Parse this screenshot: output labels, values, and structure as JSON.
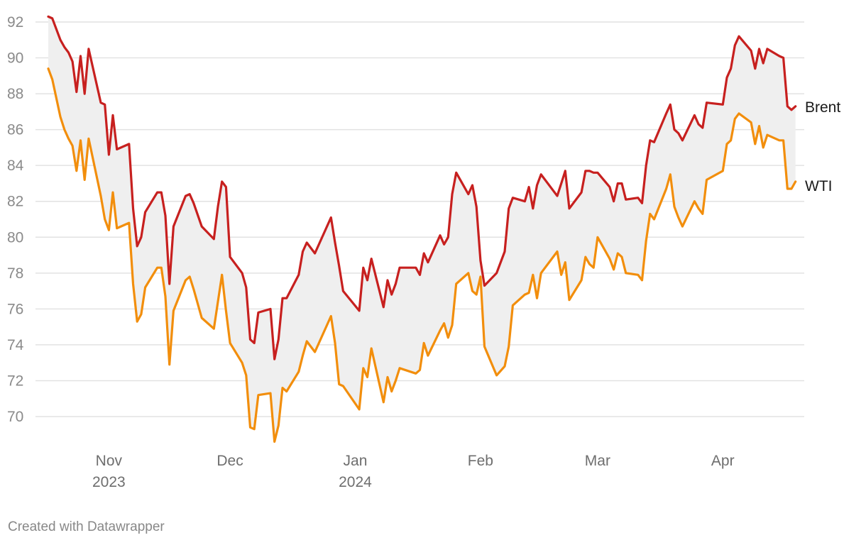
{
  "chart_data": {
    "type": "line",
    "title": "",
    "xlabel": "",
    "ylabel": "",
    "ylim": [
      68.2,
      92.8
    ],
    "xlim": [
      "2023-10-17",
      "2024-04-18"
    ],
    "y_ticks": [
      70,
      72,
      74,
      76,
      78,
      80,
      82,
      84,
      86,
      88,
      90,
      92
    ],
    "x_ticks": [
      {
        "date": "2023-11-01",
        "label": "Nov",
        "sublabel": "2023"
      },
      {
        "date": "2023-12-01",
        "label": "Dec",
        "sublabel": ""
      },
      {
        "date": "2024-01-01",
        "label": "Jan",
        "sublabel": "2024"
      },
      {
        "date": "2024-02-01",
        "label": "Feb",
        "sublabel": ""
      },
      {
        "date": "2024-03-01",
        "label": "Mar",
        "sublabel": ""
      },
      {
        "date": "2024-04-01",
        "label": "Apr",
        "sublabel": ""
      }
    ],
    "grid": true,
    "fill_between_series": true,
    "fill_color": "#efefef",
    "series": [
      {
        "name": "Brent",
        "color": "#c7201f",
        "points": [
          [
            "2023-10-17",
            92.3
          ],
          [
            "2023-10-18",
            92.2
          ],
          [
            "2023-10-20",
            91.0
          ],
          [
            "2023-10-21",
            90.6
          ],
          [
            "2023-10-22",
            90.3
          ],
          [
            "2023-10-23",
            89.8
          ],
          [
            "2023-10-24",
            88.1
          ],
          [
            "2023-10-25",
            90.1
          ],
          [
            "2023-10-26",
            88.0
          ],
          [
            "2023-10-27",
            90.5
          ],
          [
            "2023-10-30",
            87.5
          ],
          [
            "2023-10-31",
            87.4
          ],
          [
            "2023-11-01",
            84.6
          ],
          [
            "2023-11-02",
            86.8
          ],
          [
            "2023-11-03",
            84.9
          ],
          [
            "2023-11-06",
            85.2
          ],
          [
            "2023-11-07",
            81.6
          ],
          [
            "2023-11-08",
            79.5
          ],
          [
            "2023-11-09",
            80.0
          ],
          [
            "2023-11-10",
            81.4
          ],
          [
            "2023-11-13",
            82.5
          ],
          [
            "2023-11-14",
            82.5
          ],
          [
            "2023-11-15",
            81.2
          ],
          [
            "2023-11-16",
            77.4
          ],
          [
            "2023-11-17",
            80.6
          ],
          [
            "2023-11-20",
            82.3
          ],
          [
            "2023-11-21",
            82.4
          ],
          [
            "2023-11-22",
            81.9
          ],
          [
            "2023-11-24",
            80.6
          ],
          [
            "2023-11-27",
            79.9
          ],
          [
            "2023-11-28",
            81.7
          ],
          [
            "2023-11-29",
            83.1
          ],
          [
            "2023-11-30",
            82.8
          ],
          [
            "2023-12-01",
            78.9
          ],
          [
            "2023-12-04",
            78.0
          ],
          [
            "2023-12-05",
            77.2
          ],
          [
            "2023-12-06",
            74.3
          ],
          [
            "2023-12-07",
            74.1
          ],
          [
            "2023-12-08",
            75.8
          ],
          [
            "2023-12-11",
            76.0
          ],
          [
            "2023-12-12",
            73.2
          ],
          [
            "2023-12-13",
            74.3
          ],
          [
            "2023-12-14",
            76.6
          ],
          [
            "2023-12-15",
            76.6
          ],
          [
            "2023-12-18",
            77.9
          ],
          [
            "2023-12-19",
            79.2
          ],
          [
            "2023-12-20",
            79.7
          ],
          [
            "2023-12-22",
            79.1
          ],
          [
            "2023-12-26",
            81.1
          ],
          [
            "2023-12-27",
            79.7
          ],
          [
            "2023-12-28",
            78.4
          ],
          [
            "2023-12-29",
            77.0
          ],
          [
            "2024-01-02",
            75.9
          ],
          [
            "2024-01-03",
            78.3
          ],
          [
            "2024-01-04",
            77.6
          ],
          [
            "2024-01-05",
            78.8
          ],
          [
            "2024-01-08",
            76.1
          ],
          [
            "2024-01-09",
            77.6
          ],
          [
            "2024-01-10",
            76.8
          ],
          [
            "2024-01-11",
            77.4
          ],
          [
            "2024-01-12",
            78.3
          ],
          [
            "2024-01-16",
            78.3
          ],
          [
            "2024-01-17",
            77.9
          ],
          [
            "2024-01-18",
            79.1
          ],
          [
            "2024-01-19",
            78.6
          ],
          [
            "2024-01-22",
            80.1
          ],
          [
            "2024-01-23",
            79.6
          ],
          [
            "2024-01-24",
            80.0
          ],
          [
            "2024-01-25",
            82.4
          ],
          [
            "2024-01-26",
            83.6
          ],
          [
            "2024-01-29",
            82.4
          ],
          [
            "2024-01-30",
            82.9
          ],
          [
            "2024-01-31",
            81.7
          ],
          [
            "2024-02-01",
            78.7
          ],
          [
            "2024-02-02",
            77.3
          ],
          [
            "2024-02-05",
            78.0
          ],
          [
            "2024-02-07",
            79.2
          ],
          [
            "2024-02-08",
            81.6
          ],
          [
            "2024-02-09",
            82.2
          ],
          [
            "2024-02-12",
            82.0
          ],
          [
            "2024-02-13",
            82.8
          ],
          [
            "2024-02-14",
            81.6
          ],
          [
            "2024-02-15",
            82.9
          ],
          [
            "2024-02-16",
            83.5
          ],
          [
            "2024-02-20",
            82.3
          ],
          [
            "2024-02-21",
            83.0
          ],
          [
            "2024-02-22",
            83.7
          ],
          [
            "2024-02-23",
            81.6
          ],
          [
            "2024-02-26",
            82.5
          ],
          [
            "2024-02-27",
            83.7
          ],
          [
            "2024-02-28",
            83.7
          ],
          [
            "2024-02-29",
            83.6
          ],
          [
            "2024-03-01",
            83.6
          ],
          [
            "2024-03-04",
            82.8
          ],
          [
            "2024-03-05",
            82.0
          ],
          [
            "2024-03-06",
            83.0
          ],
          [
            "2024-03-07",
            83.0
          ],
          [
            "2024-03-08",
            82.1
          ],
          [
            "2024-03-11",
            82.2
          ],
          [
            "2024-03-12",
            81.9
          ],
          [
            "2024-03-13",
            84.0
          ],
          [
            "2024-03-14",
            85.4
          ],
          [
            "2024-03-15",
            85.3
          ],
          [
            "2024-03-18",
            86.9
          ],
          [
            "2024-03-19",
            87.4
          ],
          [
            "2024-03-20",
            86.0
          ],
          [
            "2024-03-21",
            85.8
          ],
          [
            "2024-03-22",
            85.4
          ],
          [
            "2024-03-25",
            86.8
          ],
          [
            "2024-03-26",
            86.3
          ],
          [
            "2024-03-27",
            86.1
          ],
          [
            "2024-03-28",
            87.5
          ],
          [
            "2024-04-01",
            87.4
          ],
          [
            "2024-04-02",
            88.9
          ],
          [
            "2024-04-03",
            89.4
          ],
          [
            "2024-04-04",
            90.7
          ],
          [
            "2024-04-05",
            91.2
          ],
          [
            "2024-04-08",
            90.4
          ],
          [
            "2024-04-09",
            89.4
          ],
          [
            "2024-04-10",
            90.5
          ],
          [
            "2024-04-11",
            89.7
          ],
          [
            "2024-04-12",
            90.5
          ],
          [
            "2024-04-15",
            90.1
          ],
          [
            "2024-04-16",
            90.0
          ],
          [
            "2024-04-17",
            87.3
          ],
          [
            "2024-04-18",
            87.1
          ],
          [
            "2024-04-19",
            87.3
          ]
        ]
      },
      {
        "name": "WTI",
        "color": "#f28e0c",
        "points": [
          [
            "2023-10-17",
            89.4
          ],
          [
            "2023-10-18",
            88.8
          ],
          [
            "2023-10-20",
            86.7
          ],
          [
            "2023-10-21",
            86.0
          ],
          [
            "2023-10-22",
            85.5
          ],
          [
            "2023-10-23",
            85.1
          ],
          [
            "2023-10-24",
            83.7
          ],
          [
            "2023-10-25",
            85.4
          ],
          [
            "2023-10-26",
            83.2
          ],
          [
            "2023-10-27",
            85.5
          ],
          [
            "2023-10-30",
            82.3
          ],
          [
            "2023-10-31",
            81.0
          ],
          [
            "2023-11-01",
            80.4
          ],
          [
            "2023-11-02",
            82.5
          ],
          [
            "2023-11-03",
            80.5
          ],
          [
            "2023-11-06",
            80.8
          ],
          [
            "2023-11-07",
            77.4
          ],
          [
            "2023-11-08",
            75.3
          ],
          [
            "2023-11-09",
            75.7
          ],
          [
            "2023-11-10",
            77.2
          ],
          [
            "2023-11-13",
            78.3
          ],
          [
            "2023-11-14",
            78.3
          ],
          [
            "2023-11-15",
            76.7
          ],
          [
            "2023-11-16",
            72.9
          ],
          [
            "2023-11-17",
            75.9
          ],
          [
            "2023-11-20",
            77.6
          ],
          [
            "2023-11-21",
            77.8
          ],
          [
            "2023-11-22",
            77.1
          ],
          [
            "2023-11-24",
            75.5
          ],
          [
            "2023-11-27",
            74.9
          ],
          [
            "2023-11-28",
            76.4
          ],
          [
            "2023-11-29",
            77.9
          ],
          [
            "2023-11-30",
            75.9
          ],
          [
            "2023-12-01",
            74.1
          ],
          [
            "2023-12-04",
            73.0
          ],
          [
            "2023-12-05",
            72.3
          ],
          [
            "2023-12-06",
            69.4
          ],
          [
            "2023-12-07",
            69.3
          ],
          [
            "2023-12-08",
            71.2
          ],
          [
            "2023-12-11",
            71.3
          ],
          [
            "2023-12-12",
            68.6
          ],
          [
            "2023-12-13",
            69.5
          ],
          [
            "2023-12-14",
            71.6
          ],
          [
            "2023-12-15",
            71.4
          ],
          [
            "2023-12-18",
            72.5
          ],
          [
            "2023-12-19",
            73.4
          ],
          [
            "2023-12-20",
            74.2
          ],
          [
            "2023-12-22",
            73.6
          ],
          [
            "2023-12-26",
            75.6
          ],
          [
            "2023-12-27",
            74.1
          ],
          [
            "2023-12-28",
            71.8
          ],
          [
            "2023-12-29",
            71.7
          ],
          [
            "2024-01-02",
            70.4
          ],
          [
            "2024-01-03",
            72.7
          ],
          [
            "2024-01-04",
            72.2
          ],
          [
            "2024-01-05",
            73.8
          ],
          [
            "2024-01-08",
            70.8
          ],
          [
            "2024-01-09",
            72.2
          ],
          [
            "2024-01-10",
            71.4
          ],
          [
            "2024-01-11",
            72.0
          ],
          [
            "2024-01-12",
            72.7
          ],
          [
            "2024-01-16",
            72.4
          ],
          [
            "2024-01-17",
            72.6
          ],
          [
            "2024-01-18",
            74.1
          ],
          [
            "2024-01-19",
            73.4
          ],
          [
            "2024-01-22",
            74.8
          ],
          [
            "2024-01-23",
            75.2
          ],
          [
            "2024-01-24",
            74.4
          ],
          [
            "2024-01-25",
            75.1
          ],
          [
            "2024-01-26",
            77.4
          ],
          [
            "2024-01-29",
            78.0
          ],
          [
            "2024-01-30",
            77.0
          ],
          [
            "2024-01-31",
            76.8
          ],
          [
            "2024-02-01",
            77.8
          ],
          [
            "2024-02-02",
            73.9
          ],
          [
            "2024-02-05",
            72.3
          ],
          [
            "2024-02-07",
            72.8
          ],
          [
            "2024-02-08",
            73.9
          ],
          [
            "2024-02-09",
            76.2
          ],
          [
            "2024-02-12",
            76.8
          ],
          [
            "2024-02-13",
            76.9
          ],
          [
            "2024-02-14",
            77.9
          ],
          [
            "2024-02-15",
            76.6
          ],
          [
            "2024-02-16",
            78.0
          ],
          [
            "2024-02-20",
            79.2
          ],
          [
            "2024-02-21",
            77.9
          ],
          [
            "2024-02-22",
            78.6
          ],
          [
            "2024-02-23",
            76.5
          ],
          [
            "2024-02-26",
            77.6
          ],
          [
            "2024-02-27",
            78.9
          ],
          [
            "2024-02-28",
            78.5
          ],
          [
            "2024-02-29",
            78.3
          ],
          [
            "2024-03-01",
            80.0
          ],
          [
            "2024-03-04",
            78.8
          ],
          [
            "2024-03-05",
            78.2
          ],
          [
            "2024-03-06",
            79.1
          ],
          [
            "2024-03-07",
            78.9
          ],
          [
            "2024-03-08",
            78.0
          ],
          [
            "2024-03-11",
            77.9
          ],
          [
            "2024-03-12",
            77.6
          ],
          [
            "2024-03-13",
            79.8
          ],
          [
            "2024-03-14",
            81.3
          ],
          [
            "2024-03-15",
            81.0
          ],
          [
            "2024-03-18",
            82.7
          ],
          [
            "2024-03-19",
            83.5
          ],
          [
            "2024-03-20",
            81.7
          ],
          [
            "2024-03-21",
            81.1
          ],
          [
            "2024-03-22",
            80.6
          ],
          [
            "2024-03-25",
            82.0
          ],
          [
            "2024-03-26",
            81.6
          ],
          [
            "2024-03-27",
            81.3
          ],
          [
            "2024-03-28",
            83.2
          ],
          [
            "2024-04-01",
            83.7
          ],
          [
            "2024-04-02",
            85.2
          ],
          [
            "2024-04-03",
            85.4
          ],
          [
            "2024-04-04",
            86.6
          ],
          [
            "2024-04-05",
            86.9
          ],
          [
            "2024-04-08",
            86.4
          ],
          [
            "2024-04-09",
            85.2
          ],
          [
            "2024-04-10",
            86.2
          ],
          [
            "2024-04-11",
            85.0
          ],
          [
            "2024-04-12",
            85.7
          ],
          [
            "2024-04-15",
            85.4
          ],
          [
            "2024-04-16",
            85.4
          ],
          [
            "2024-04-17",
            82.7
          ],
          [
            "2024-04-18",
            82.7
          ],
          [
            "2024-04-19",
            83.1
          ]
        ]
      }
    ]
  },
  "credit": "Created with Datawrapper"
}
